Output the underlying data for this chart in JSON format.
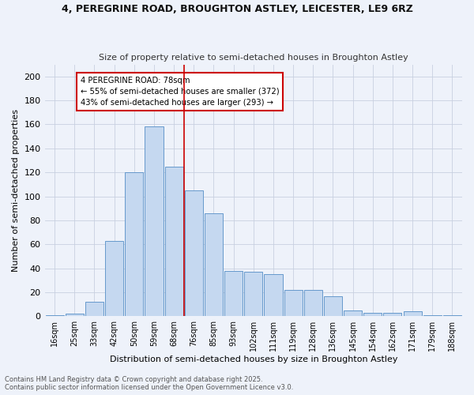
{
  "title": "4, PEREGRINE ROAD, BROUGHTON ASTLEY, LEICESTER, LE9 6RZ",
  "subtitle": "Size of property relative to semi-detached houses in Broughton Astley",
  "xlabel": "Distribution of semi-detached houses by size in Broughton Astley",
  "ylabel": "Number of semi-detached properties",
  "categories": [
    "16sqm",
    "25sqm",
    "33sqm",
    "42sqm",
    "50sqm",
    "59sqm",
    "68sqm",
    "76sqm",
    "85sqm",
    "93sqm",
    "102sqm",
    "111sqm",
    "119sqm",
    "128sqm",
    "136sqm",
    "145sqm",
    "154sqm",
    "162sqm",
    "171sqm",
    "179sqm",
    "188sqm"
  ],
  "values": [
    1,
    2,
    12,
    63,
    120,
    158,
    125,
    105,
    86,
    38,
    37,
    35,
    22,
    22,
    17,
    5,
    3,
    3,
    4,
    1,
    1
  ],
  "bar_color": "#c5d8f0",
  "bar_edge_color": "#6699cc",
  "marker_bin_index": 7,
  "marker_color": "#cc0000",
  "annotation_text": "4 PEREGRINE ROAD: 78sqm\n← 55% of semi-detached houses are smaller (372)\n43% of semi-detached houses are larger (293) →",
  "annotation_box_color": "#cc0000",
  "bg_color": "#eef2fa",
  "grid_color": "#c8d0e0",
  "footer_line1": "Contains HM Land Registry data © Crown copyright and database right 2025.",
  "footer_line2": "Contains public sector information licensed under the Open Government Licence v3.0.",
  "ylim": [
    0,
    210
  ],
  "yticks": [
    0,
    20,
    40,
    60,
    80,
    100,
    120,
    140,
    160,
    180,
    200
  ]
}
